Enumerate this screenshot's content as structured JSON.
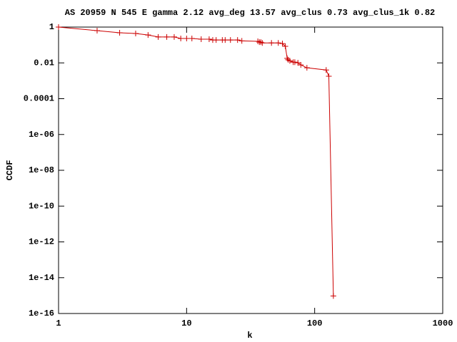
{
  "chart_data": {
    "type": "line",
    "title": "AS 20959 N 545 E gamma 2.12 avg_deg 13.57 avg_clus 0.73 avg_clus_1k 0.82",
    "xlabel": "k",
    "ylabel": "CCDF",
    "xscale": "log",
    "yscale": "log",
    "xlim": [
      1,
      1000
    ],
    "ylim": [
      1e-16,
      1
    ],
    "xticks": [
      1,
      10,
      100,
      1000
    ],
    "yticks": [
      1,
      0.01,
      0.0001,
      {
        "value": 1e-06,
        "label": "1e-06"
      },
      {
        "value": 1e-08,
        "label": "1e-08"
      },
      {
        "value": 1e-10,
        "label": "1e-10"
      },
      {
        "value": 1e-12,
        "label": "1e-12"
      },
      {
        "value": 1e-14,
        "label": "1e-14"
      },
      {
        "value": 1e-16,
        "label": "1e-16"
      }
    ],
    "color": "#cc0000",
    "marker": "+",
    "x": [
      1,
      2,
      3,
      4,
      5,
      6,
      7,
      8,
      9,
      10,
      11,
      13,
      15,
      16,
      17,
      19,
      20,
      22,
      25,
      27,
      36,
      37,
      38,
      39,
      46,
      52,
      56,
      59,
      61,
      62,
      64,
      68,
      70,
      74,
      78,
      87,
      123,
      129,
      140
    ],
    "values": [
      1,
      0.63,
      0.48,
      0.44,
      0.36,
      0.28,
      0.28,
      0.28,
      0.23,
      0.23,
      0.23,
      0.21,
      0.21,
      0.19,
      0.19,
      0.19,
      0.19,
      0.19,
      0.19,
      0.17,
      0.16,
      0.145,
      0.145,
      0.13,
      0.13,
      0.13,
      0.12,
      0.084,
      0.018,
      0.015,
      0.013,
      0.011,
      0.011,
      0.0101,
      0.0077,
      0.0053,
      0.004,
      0.0018,
      9.5e-16
    ]
  }
}
